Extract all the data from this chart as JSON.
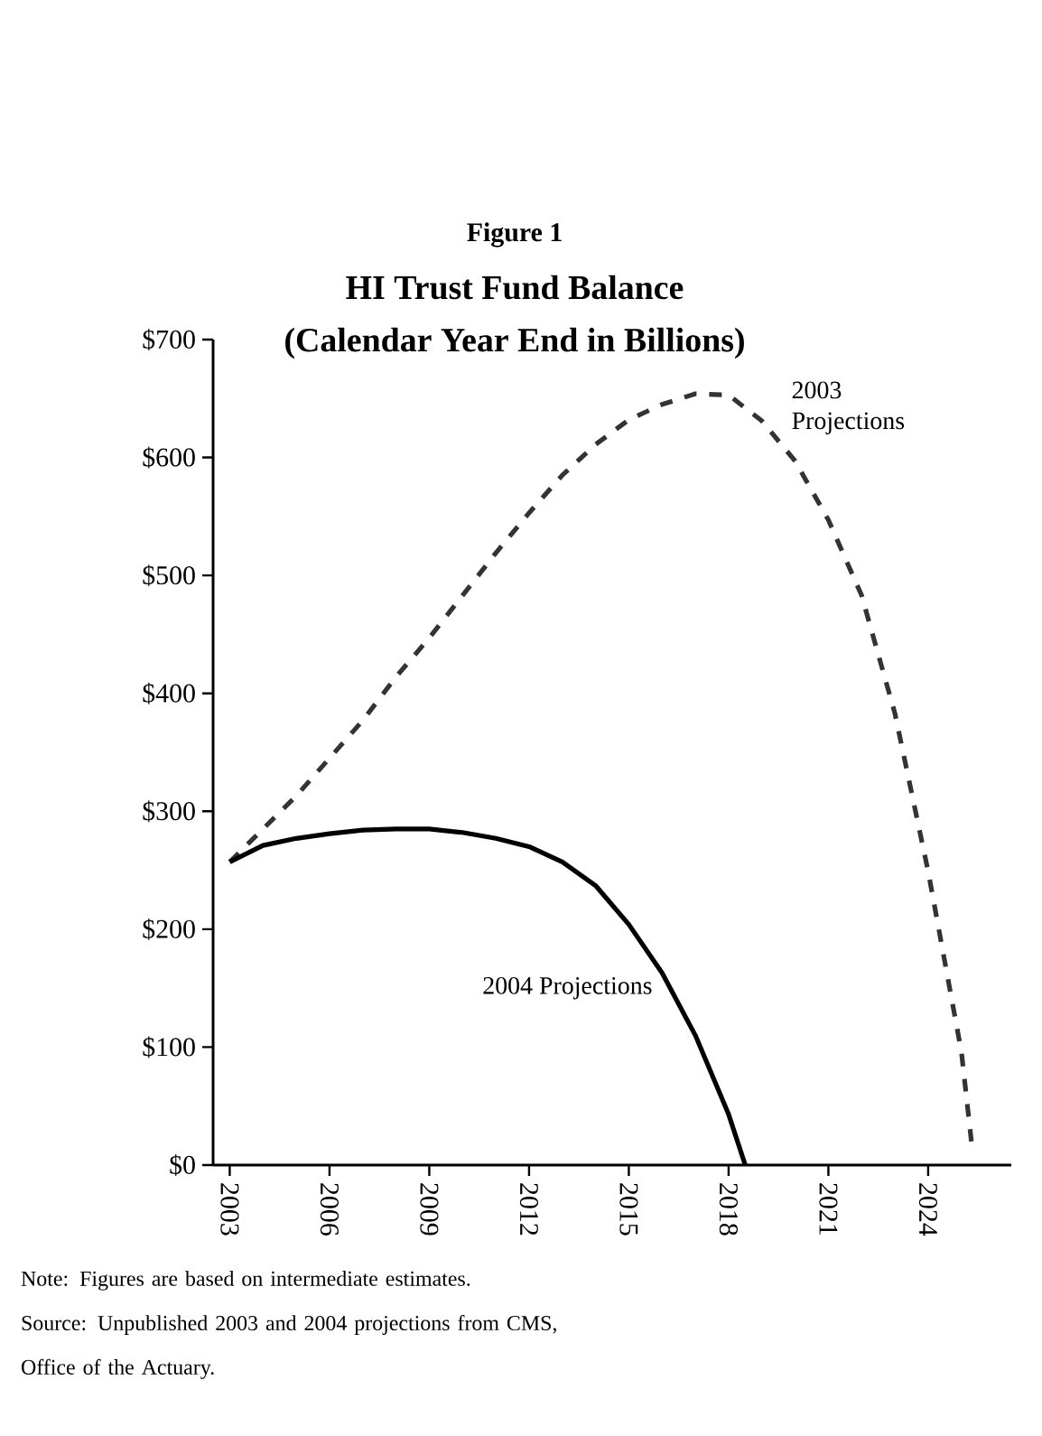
{
  "chart_data": {
    "type": "line",
    "title": "HI Trust Fund Balance",
    "subtitle": "(Calendar Year End in Billions)",
    "annotations": [
      "Figure 1",
      "Note:  Figures are based on intermediate estimates.",
      "Source:  Unpublished 2003 and 2004 projections from CMS, Office of the Actuary."
    ],
    "xlim": [
      2002.5,
      2026.5
    ],
    "xticks": [
      2003,
      2006,
      2009,
      2012,
      2015,
      2018,
      2021,
      2024
    ],
    "ylim": [
      0,
      700
    ],
    "yticks": [
      {
        "value": 0,
        "label": "$0"
      },
      {
        "value": 100,
        "label": "$100"
      },
      {
        "value": 200,
        "label": "$200"
      },
      {
        "value": 300,
        "label": "$300"
      },
      {
        "value": 400,
        "label": "$400"
      },
      {
        "value": 500,
        "label": "$500"
      },
      {
        "value": 600,
        "label": "$600"
      },
      {
        "value": 700,
        "label": "$700"
      }
    ],
    "grid": false,
    "series": [
      {
        "name": "2003 Projections",
        "color": "#333333",
        "line_style": "dashed",
        "x": [
          2003,
          2004,
          2005,
          2006,
          2007,
          2008,
          2009,
          2010,
          2011,
          2012,
          2013,
          2014,
          2015,
          2016,
          2017,
          2018,
          2019,
          2020,
          2021,
          2022,
          2023,
          2024,
          2025,
          2025.3
        ],
        "values": [
          257,
          285,
          313,
          345,
          377,
          414,
          447,
          483,
          519,
          553,
          585,
          611,
          632,
          645,
          654,
          653,
          631,
          597,
          547,
          483,
          383,
          249,
          96,
          20
        ]
      },
      {
        "name": "2004 Projections",
        "color": "#000000",
        "line_style": "solid",
        "x": [
          2003,
          2004,
          2005,
          2006,
          2007,
          2008,
          2009,
          2010,
          2011,
          2012,
          2013,
          2014,
          2015,
          2016,
          2017,
          2018,
          2018.5
        ],
        "values": [
          257,
          271,
          277,
          281,
          284,
          285,
          285,
          282,
          277,
          270,
          257,
          237,
          204,
          163,
          110,
          43,
          0
        ]
      }
    ]
  }
}
